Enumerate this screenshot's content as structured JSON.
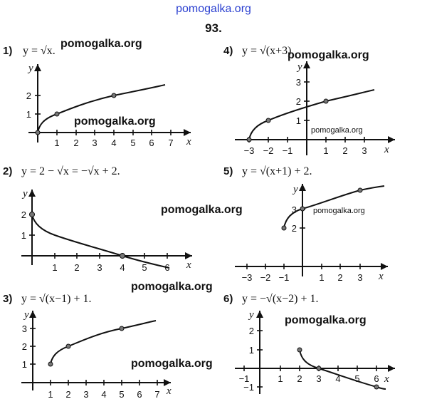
{
  "header": {
    "site": "pomogalka.org",
    "problem_number": "93."
  },
  "watermarks": {
    "text": "pomogalka.org"
  },
  "graphs": [
    {
      "number": "1)",
      "formula": "y = √x.",
      "x_ticks": [
        "1",
        "2",
        "3",
        "4",
        "5",
        "6",
        "7"
      ],
      "y_ticks": [
        "1",
        "2"
      ],
      "x_label": "x",
      "y_label": "y",
      "points": [
        [
          0,
          0
        ],
        [
          1,
          1
        ],
        [
          4,
          2
        ]
      ]
    },
    {
      "number": "2)",
      "formula": "y = 2 − √x = −√x + 2.",
      "x_ticks": [
        "1",
        "2",
        "3",
        "4",
        "5",
        "6"
      ],
      "y_ticks": [
        "1",
        "2"
      ],
      "x_label": "x",
      "y_label": "y",
      "points": [
        [
          0,
          2
        ],
        [
          4,
          0
        ]
      ]
    },
    {
      "number": "3)",
      "formula": "y = √(x−1) + 1.",
      "x_ticks": [
        "1",
        "2",
        "3",
        "4",
        "5",
        "6",
        "7"
      ],
      "y_ticks": [
        "1",
        "2",
        "3"
      ],
      "x_label": "x",
      "y_label": "y",
      "points": [
        [
          1,
          1
        ],
        [
          2,
          2
        ],
        [
          5,
          3
        ]
      ]
    },
    {
      "number": "4)",
      "formula": "y = √(x+3)",
      "x_ticks": [
        "−3",
        "−2",
        "−1",
        "1",
        "2",
        "3"
      ],
      "y_ticks": [
        "1",
        "2",
        "3"
      ],
      "x_label": "x",
      "y_label": "y",
      "points": [
        [
          -3,
          0
        ],
        [
          -2,
          1
        ],
        [
          1,
          2
        ]
      ]
    },
    {
      "number": "5)",
      "formula": "y = √(x+1) + 2.",
      "x_ticks": [
        "−3",
        "−2",
        "−1",
        "1",
        "2",
        "3"
      ],
      "y_ticks": [
        "2",
        "3"
      ],
      "x_label": "x",
      "y_label": "y",
      "points": [
        [
          -1,
          2
        ],
        [
          0,
          3
        ],
        [
          3,
          4
        ]
      ]
    },
    {
      "number": "6)",
      "formula": "y = −√(x−2) + 1.",
      "x_ticks": [
        "−1",
        "1",
        "2",
        "3",
        "4",
        "5",
        "6"
      ],
      "y_ticks": [
        "2",
        "1",
        "−1"
      ],
      "x_label": "x",
      "y_label": "y",
      "points": [
        [
          2,
          1
        ],
        [
          3,
          0
        ],
        [
          6,
          -1
        ]
      ]
    }
  ]
}
